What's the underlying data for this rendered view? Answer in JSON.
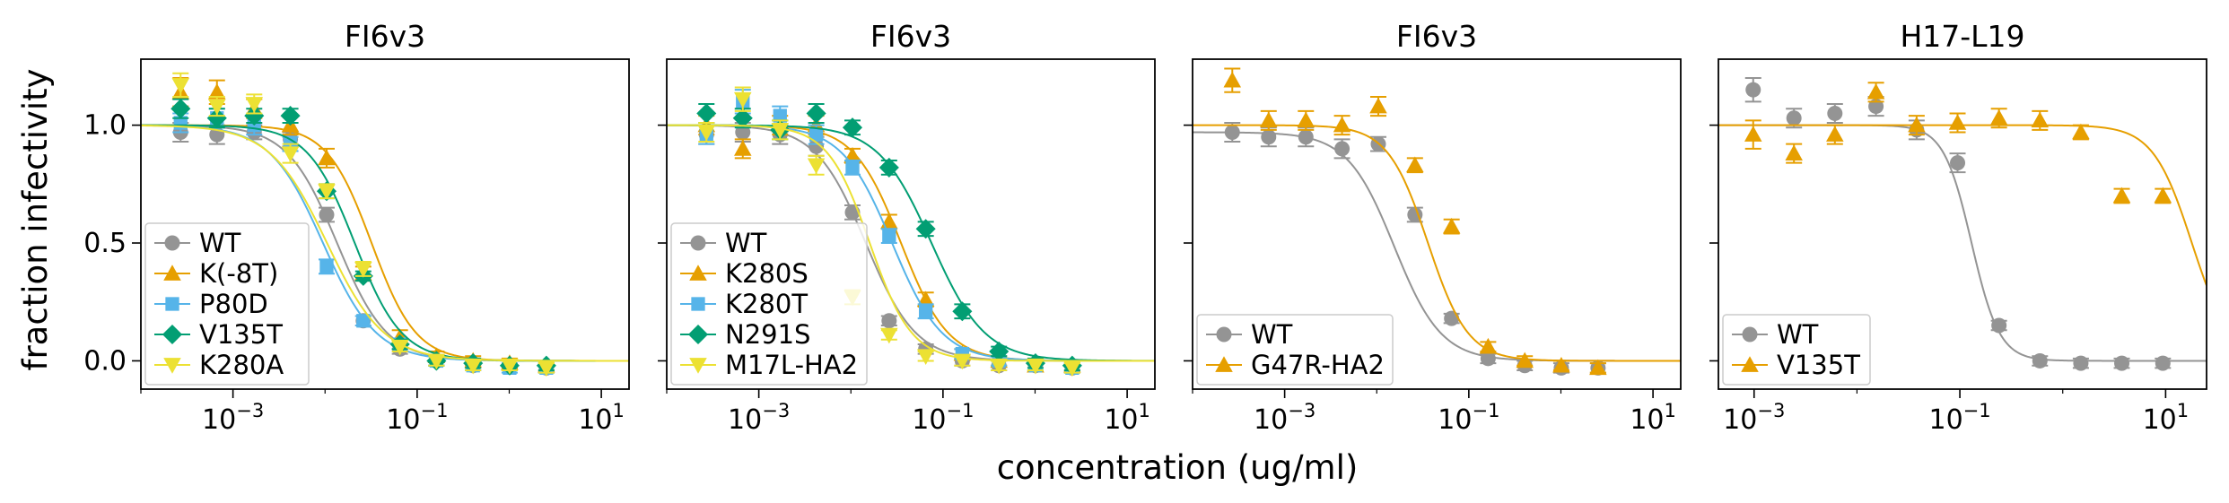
{
  "figure": {
    "ylabel": "fraction infectivity",
    "xlabel": "concentration (ug/ml)"
  },
  "chart_data": [
    {
      "type": "line",
      "title": "FI6v3",
      "xscale": "log",
      "xlim": [
        0.0001,
        20
      ],
      "ylim": [
        -0.12,
        1.28
      ],
      "yticks": [
        0.0,
        0.5,
        1.0
      ],
      "ytick_labels": [
        "0.0",
        "0.5",
        "1.0"
      ],
      "xticks": [
        0.001,
        0.1,
        10
      ],
      "xtick_labels": [
        "10−3",
        "10−1",
        "101"
      ],
      "legend_placement": "lower-left",
      "series": [
        {
          "name": "WT",
          "color": "#949494",
          "marker": "circle",
          "x": [
            0.00027,
            0.00067,
            0.0017,
            0.0042,
            0.0104,
            0.026,
            0.065,
            0.162,
            0.405,
            1.01,
            2.53
          ],
          "y": [
            0.97,
            0.96,
            0.97,
            0.94,
            0.62,
            0.17,
            0.05,
            0.0,
            -0.02,
            -0.02,
            -0.03
          ],
          "err": [
            0.04,
            0.04,
            0.03,
            0.03,
            0.03,
            0.02,
            0.02,
            0.02,
            0.02,
            0.02,
            0.02
          ],
          "fit": {
            "ic50": 0.0135,
            "hill": 1.6,
            "top": 1.0
          }
        },
        {
          "name": "K(-8T)",
          "color": "#E69F00",
          "marker": "triangle-up",
          "x": [
            0.00027,
            0.00067,
            0.0017,
            0.0042,
            0.0104,
            0.026,
            0.065,
            0.162,
            0.405,
            1.01,
            2.53
          ],
          "y": [
            1.14,
            1.14,
            1.07,
            1.0,
            0.86,
            0.37,
            0.1,
            0.02,
            0.0,
            -0.01,
            -0.02
          ],
          "err": [
            0.06,
            0.05,
            0.04,
            0.04,
            0.04,
            0.03,
            0.03,
            0.02,
            0.02,
            0.02,
            0.02
          ],
          "fit": {
            "ic50": 0.032,
            "hill": 1.8,
            "top": 1.0
          }
        },
        {
          "name": "P80D",
          "color": "#56B4E9",
          "marker": "square",
          "x": [
            0.00027,
            0.00067,
            0.0017,
            0.0042,
            0.0104,
            0.026,
            0.065,
            0.162,
            0.405,
            1.01,
            2.53
          ],
          "y": [
            1.01,
            1.03,
            1.0,
            0.92,
            0.4,
            0.17,
            0.07,
            0.0,
            -0.02,
            -0.03,
            -0.03
          ],
          "err": [
            0.04,
            0.04,
            0.04,
            0.03,
            0.03,
            0.02,
            0.02,
            0.02,
            0.02,
            0.02,
            0.02
          ],
          "fit": {
            "ic50": 0.0095,
            "hill": 1.5,
            "top": 1.0
          }
        },
        {
          "name": "V135T",
          "color": "#029E73",
          "marker": "diamond",
          "x": [
            0.00027,
            0.00067,
            0.0017,
            0.0042,
            0.0104,
            0.026,
            0.065,
            0.162,
            0.405,
            1.01,
            2.53
          ],
          "y": [
            1.07,
            1.03,
            1.04,
            1.04,
            0.72,
            0.36,
            0.07,
            0.0,
            -0.01,
            -0.02,
            -0.02
          ],
          "err": [
            0.04,
            0.04,
            0.03,
            0.03,
            0.03,
            0.02,
            0.02,
            0.02,
            0.02,
            0.02,
            0.02
          ],
          "fit": {
            "ic50": 0.021,
            "hill": 1.7,
            "top": 1.0
          }
        },
        {
          "name": "K280A",
          "color": "#ECE133",
          "marker": "triangle-down",
          "x": [
            0.00027,
            0.00067,
            0.0017,
            0.0042,
            0.0104,
            0.026,
            0.065,
            0.162,
            0.405,
            1.01,
            2.53
          ],
          "y": [
            1.17,
            1.08,
            1.09,
            0.88,
            0.72,
            0.39,
            0.06,
            0.0,
            -0.02,
            -0.02,
            -0.03
          ],
          "err": [
            0.05,
            0.04,
            0.04,
            0.04,
            0.03,
            0.03,
            0.02,
            0.02,
            0.02,
            0.02,
            0.02
          ],
          "fit": {
            "ic50": 0.0105,
            "hill": 1.4,
            "top": 1.0
          }
        }
      ]
    },
    {
      "type": "line",
      "title": "FI6v3",
      "xscale": "log",
      "xlim": [
        0.0001,
        20
      ],
      "ylim": [
        -0.12,
        1.28
      ],
      "yticks": [
        0.0,
        0.5,
        1.0
      ],
      "ytick_labels": [
        "",
        "",
        ""
      ],
      "xticks": [
        0.001,
        0.1,
        10
      ],
      "xtick_labels": [
        "10−3",
        "10−1",
        "101"
      ],
      "legend_placement": "lower-left",
      "series": [
        {
          "name": "WT",
          "color": "#949494",
          "marker": "circle",
          "x": [
            0.00027,
            0.00067,
            0.0017,
            0.0042,
            0.0104,
            0.026,
            0.065,
            0.162,
            0.405,
            1.01,
            2.53
          ],
          "y": [
            0.96,
            0.97,
            0.96,
            0.91,
            0.63,
            0.17,
            0.05,
            0.0,
            -0.02,
            -0.02,
            -0.03
          ],
          "err": [
            0.04,
            0.04,
            0.04,
            0.04,
            0.03,
            0.02,
            0.02,
            0.02,
            0.02,
            0.02,
            0.02
          ],
          "fit": {
            "ic50": 0.0145,
            "hill": 1.6,
            "top": 1.0
          }
        },
        {
          "name": "K280S",
          "color": "#E69F00",
          "marker": "triangle-up",
          "x": [
            0.00027,
            0.00067,
            0.0017,
            0.0042,
            0.0104,
            0.026,
            0.065,
            0.162,
            0.405,
            1.01,
            2.53
          ],
          "y": [
            1.0,
            0.9,
            1.0,
            1.0,
            0.87,
            0.59,
            0.26,
            0.03,
            0.0,
            -0.02,
            -0.02
          ],
          "err": [
            0.04,
            0.04,
            0.04,
            0.04,
            0.03,
            0.03,
            0.03,
            0.02,
            0.02,
            0.02,
            0.02
          ],
          "fit": {
            "ic50": 0.035,
            "hill": 1.7,
            "top": 1.0
          }
        },
        {
          "name": "K280T",
          "color": "#56B4E9",
          "marker": "square",
          "x": [
            0.00027,
            0.00067,
            0.0017,
            0.0042,
            0.0104,
            0.026,
            0.065,
            0.162,
            0.405,
            1.01,
            2.53
          ],
          "y": [
            0.96,
            1.1,
            1.04,
            0.96,
            0.82,
            0.53,
            0.21,
            0.03,
            0.0,
            -0.02,
            -0.03
          ],
          "err": [
            0.04,
            0.05,
            0.04,
            0.04,
            0.03,
            0.03,
            0.03,
            0.02,
            0.02,
            0.02,
            0.02
          ],
          "fit": {
            "ic50": 0.028,
            "hill": 1.6,
            "top": 1.0
          }
        },
        {
          "name": "N291S",
          "color": "#029E73",
          "marker": "diamond",
          "x": [
            0.00027,
            0.00067,
            0.0017,
            0.0042,
            0.0104,
            0.026,
            0.065,
            0.162,
            0.405,
            1.01,
            2.53
          ],
          "y": [
            1.05,
            1.03,
            0.98,
            1.05,
            0.99,
            0.82,
            0.56,
            0.21,
            0.04,
            -0.01,
            -0.02
          ],
          "err": [
            0.04,
            0.04,
            0.04,
            0.04,
            0.03,
            0.03,
            0.03,
            0.03,
            0.02,
            0.02,
            0.02
          ],
          "fit": {
            "ic50": 0.075,
            "hill": 1.5,
            "top": 1.0
          }
        },
        {
          "name": "M17L-HA2",
          "color": "#ECE133",
          "marker": "triangle-down",
          "x": [
            0.00027,
            0.00067,
            0.0017,
            0.0042,
            0.0104,
            0.026,
            0.065,
            0.162,
            0.405,
            1.01,
            2.53
          ],
          "y": [
            0.97,
            1.11,
            0.98,
            0.83,
            0.27,
            0.11,
            0.02,
            0.0,
            -0.02,
            -0.02,
            -0.03
          ],
          "err": [
            0.04,
            0.05,
            0.04,
            0.04,
            0.03,
            0.02,
            0.02,
            0.02,
            0.02,
            0.02,
            0.02
          ],
          "fit": {
            "ic50": 0.016,
            "hill": 1.9,
            "top": 1.0
          }
        }
      ]
    },
    {
      "type": "line",
      "title": "FI6v3",
      "xscale": "log",
      "xlim": [
        0.0001,
        20
      ],
      "ylim": [
        -0.12,
        1.28
      ],
      "yticks": [
        0.0,
        0.5,
        1.0
      ],
      "ytick_labels": [
        "",
        "",
        ""
      ],
      "xticks": [
        0.001,
        0.1,
        10
      ],
      "xtick_labels": [
        "10−3",
        "10−1",
        "101"
      ],
      "legend_placement": "lower-left",
      "series": [
        {
          "name": "WT",
          "color": "#949494",
          "marker": "circle",
          "x": [
            0.00027,
            0.00067,
            0.0017,
            0.0042,
            0.0104,
            0.026,
            0.065,
            0.162,
            0.405,
            1.01,
            2.53
          ],
          "y": [
            0.97,
            0.95,
            0.95,
            0.9,
            0.92,
            0.62,
            0.18,
            0.01,
            -0.02,
            -0.03,
            -0.03
          ],
          "err": [
            0.04,
            0.04,
            0.04,
            0.04,
            0.03,
            0.03,
            0.02,
            0.02,
            0.02,
            0.02,
            0.02
          ],
          "fit": {
            "ic50": 0.0155,
            "hill": 1.7,
            "top": 0.97
          }
        },
        {
          "name": "G47R-HA2",
          "color": "#E69F00",
          "marker": "triangle-up",
          "x": [
            0.00027,
            0.00067,
            0.0017,
            0.0042,
            0.0104,
            0.026,
            0.065,
            0.162,
            0.405,
            1.01,
            2.53
          ],
          "y": [
            1.19,
            1.02,
            1.02,
            1.0,
            1.08,
            0.83,
            0.57,
            0.06,
            0.0,
            -0.02,
            -0.03
          ],
          "err": [
            0.05,
            0.04,
            0.04,
            0.04,
            0.04,
            0.03,
            0.03,
            0.02,
            0.02,
            0.02,
            0.02
          ],
          "fit": {
            "ic50": 0.036,
            "hill": 2.0,
            "top": 1.0
          }
        }
      ]
    },
    {
      "type": "line",
      "title": "H17-L19",
      "xscale": "log",
      "xlim": [
        0.00045,
        25
      ],
      "ylim": [
        -0.12,
        1.28
      ],
      "yticks": [
        0.0,
        0.5,
        1.0
      ],
      "ytick_labels": [
        "",
        "",
        ""
      ],
      "xticks": [
        0.001,
        0.1,
        10
      ],
      "xtick_labels": [
        "10−3",
        "10−1",
        "101"
      ],
      "legend_placement": "lower-left",
      "series": [
        {
          "name": "WT",
          "color": "#949494",
          "marker": "circle",
          "x": [
            0.00098,
            0.00244,
            0.0061,
            0.0153,
            0.038,
            0.095,
            0.24,
            0.6,
            1.5,
            3.75,
            9.4
          ],
          "y": [
            1.15,
            1.03,
            1.05,
            1.08,
            0.98,
            0.84,
            0.15,
            0.0,
            -0.01,
            -0.01,
            -0.01
          ],
          "err": [
            0.05,
            0.04,
            0.04,
            0.04,
            0.04,
            0.04,
            0.02,
            0.02,
            0.02,
            0.02,
            0.02
          ],
          "fit": {
            "ic50": 0.13,
            "hill": 3.2,
            "top": 1.0
          }
        },
        {
          "name": "V135T",
          "color": "#E69F00",
          "marker": "triangle-up",
          "x": [
            0.00098,
            0.00244,
            0.0061,
            0.0153,
            0.038,
            0.095,
            0.24,
            0.6,
            1.5,
            3.75,
            9.4
          ],
          "y": [
            0.96,
            0.88,
            0.96,
            1.14,
            1.0,
            1.01,
            1.03,
            1.02,
            0.97,
            0.7,
            0.7
          ],
          "err": [
            0.06,
            0.04,
            0.04,
            0.04,
            0.04,
            0.04,
            0.04,
            0.04,
            0.03,
            0.03,
            0.03
          ],
          "fit": {
            "ic50": 18,
            "hill": 2.3,
            "top": 1.0
          }
        }
      ]
    }
  ]
}
